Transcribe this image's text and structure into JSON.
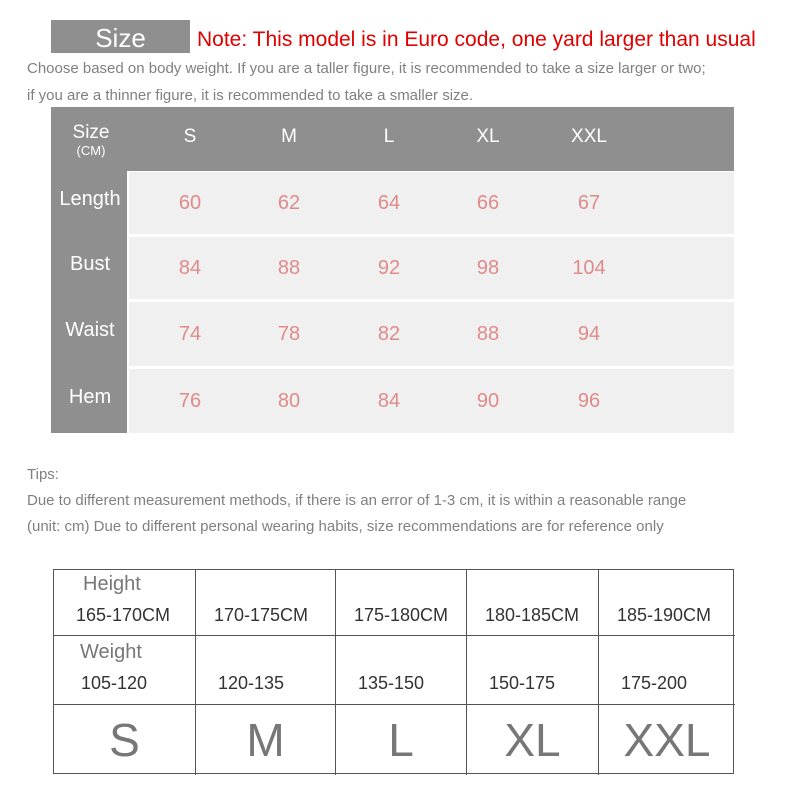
{
  "header": {
    "size_label": "Size",
    "note": "Note: This model is in Euro code, one yard larger than usual",
    "desc1": "Choose based on body weight. If you are a taller figure, it is recommended to take a size larger or two;",
    "desc2": "if you are a thinner figure, it is recommended to take a smaller size."
  },
  "size_table": {
    "corner": "Size",
    "corner_unit": "(CM)",
    "columns": [
      "S",
      "M",
      "L",
      "XL",
      "XXL"
    ],
    "rows": [
      {
        "label": "Length",
        "values": [
          "60",
          "62",
          "64",
          "66",
          "67"
        ]
      },
      {
        "label": "Bust",
        "values": [
          "84",
          "88",
          "92",
          "98",
          "104"
        ]
      },
      {
        "label": "Waist",
        "values": [
          "74",
          "78",
          "82",
          "88",
          "94"
        ]
      },
      {
        "label": "Hem",
        "values": [
          "76",
          "80",
          "84",
          "90",
          "96"
        ]
      }
    ]
  },
  "tips": {
    "title": "Tips:",
    "line1": "Due to different measurement methods, if there is an error of 1-3 cm, it is within a reasonable range",
    "line2": "(unit: cm) Due to different personal wearing habits, size recommendations are for reference only"
  },
  "fit_table": {
    "height_label": "Height",
    "weight_label": "Weight",
    "heights": [
      "165-170CM",
      "170-175CM",
      "175-180CM",
      "180-185CM",
      "185-190CM"
    ],
    "weights": [
      "105-120",
      "120-135",
      "135-150",
      "150-175",
      "175-200"
    ],
    "sizes": [
      "S",
      "M",
      "L",
      "XL",
      "XXL"
    ]
  },
  "colors": {
    "note": "#e00000",
    "header_bg": "#8f8f8f",
    "value": "#e08a8a"
  }
}
